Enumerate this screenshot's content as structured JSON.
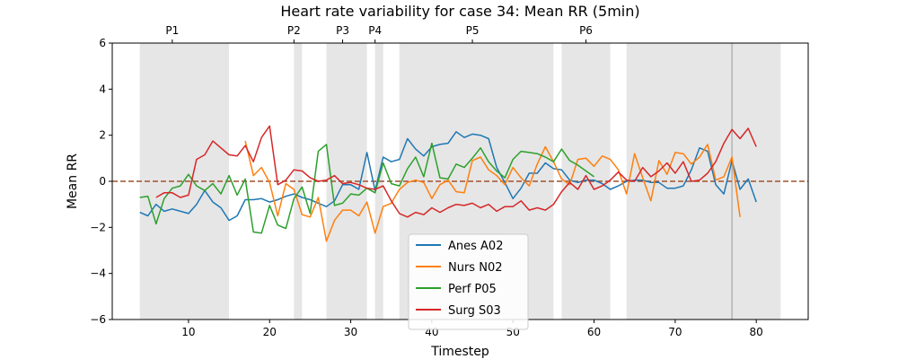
{
  "chart_data": {
    "type": "line",
    "title": "Heart rate variability for case 34: Mean RR (5min)",
    "xlabel": "Timestep",
    "ylabel": "Mean RR",
    "xlim": [
      0.6,
      86.4
    ],
    "ylim": [
      -6,
      6
    ],
    "xticks": [
      10,
      20,
      30,
      40,
      50,
      60,
      70,
      80
    ],
    "yticks": [
      -6,
      -4,
      -2,
      0,
      2,
      4,
      6
    ],
    "reference_line": {
      "y": 0,
      "color": "#a0522d",
      "style": "dashed"
    },
    "legend_position": "lower-center",
    "phases": [
      {
        "label": "P1",
        "start": 4,
        "end": 15,
        "label_x": 8
      },
      {
        "label": "P2",
        "start": 23,
        "end": 24,
        "label_x": 23
      },
      {
        "label": "P3",
        "start": 27,
        "end": 32,
        "label_x": 29
      },
      {
        "label": "P4",
        "start": 33,
        "end": 34,
        "label_x": 33
      },
      {
        "label": "P5",
        "start": 36,
        "end": 55,
        "label_x": 45
      },
      {
        "label": "P6",
        "start": 56,
        "end": 62,
        "label_x": 59
      },
      {
        "label": "",
        "start": 64,
        "end": 77,
        "label_x": null
      },
      {
        "label": "",
        "start": 77,
        "end": 83,
        "label_x": null
      }
    ],
    "series": [
      {
        "name": "Anes A02",
        "color": "#1f77b4",
        "x": [
          4,
          5,
          6,
          7,
          8,
          9,
          10,
          11,
          12,
          13,
          14,
          15,
          16,
          17,
          18,
          19,
          20,
          21,
          22,
          23,
          24,
          25,
          26,
          27,
          28,
          29,
          30,
          31,
          32,
          33,
          34,
          35,
          36,
          37,
          38,
          39,
          40,
          41,
          42,
          43,
          44,
          45,
          46,
          47,
          48,
          49,
          50,
          51,
          52,
          53,
          54,
          55,
          56,
          57,
          58,
          59,
          60,
          61,
          62,
          63,
          64,
          65,
          66,
          67,
          68,
          69,
          70,
          71,
          72,
          73,
          74,
          75,
          76,
          77,
          78,
          79,
          80
        ],
        "values": [
          -1.35,
          -1.5,
          -1.0,
          -1.3,
          -1.2,
          -1.3,
          -1.4,
          -1.0,
          -0.4,
          -0.9,
          -1.15,
          -1.7,
          -1.5,
          -0.8,
          -0.8,
          -0.75,
          -0.9,
          -0.8,
          -0.65,
          -0.55,
          -0.7,
          -0.8,
          -0.95,
          -1.1,
          -0.85,
          -0.15,
          -0.15,
          -0.35,
          1.25,
          -0.4,
          1.05,
          0.85,
          0.95,
          1.85,
          1.4,
          1.1,
          1.5,
          1.6,
          1.65,
          2.15,
          1.9,
          2.05,
          2.0,
          1.85,
          0.6,
          -0.05,
          -0.75,
          -0.3,
          0.35,
          0.35,
          0.8,
          0.55,
          0.5,
          0.05,
          -0.05,
          0.05,
          0.05,
          -0.1,
          -0.35,
          -0.2,
          0.0,
          0.05,
          0.05,
          -0.05,
          -0.05,
          -0.3,
          -0.3,
          -0.2,
          0.5,
          1.45,
          1.3,
          -0.15,
          -0.55,
          0.9,
          -0.35,
          0.1,
          -0.9
        ]
      },
      {
        "name": "Nurs N02",
        "color": "#ff7f0e",
        "x": [
          17,
          18,
          19,
          20,
          21,
          22,
          23,
          24,
          25,
          26,
          27,
          28,
          29,
          30,
          31,
          32,
          33,
          34,
          35,
          36,
          37,
          38,
          39,
          40,
          41,
          42,
          43,
          44,
          45,
          46,
          47,
          48,
          49,
          50,
          51,
          52,
          53,
          54,
          55,
          56,
          57,
          58,
          59,
          60,
          61,
          62,
          63,
          64,
          65,
          66,
          67,
          68,
          69,
          70,
          71,
          72,
          73,
          74,
          75,
          76,
          77,
          78
        ],
        "values": [
          1.75,
          0.25,
          0.6,
          -0.05,
          -1.5,
          -0.1,
          -0.35,
          -1.45,
          -1.55,
          -0.7,
          -2.6,
          -1.7,
          -1.25,
          -1.25,
          -1.5,
          -0.9,
          -2.25,
          -1.1,
          -0.95,
          -0.35,
          -0.05,
          0.05,
          -0.05,
          -0.75,
          -0.15,
          0.05,
          -0.45,
          -0.5,
          0.9,
          1.05,
          0.5,
          0.25,
          -0.15,
          0.6,
          0.15,
          -0.2,
          0.75,
          1.5,
          0.85,
          0.1,
          -0.15,
          0.95,
          1.0,
          0.65,
          1.1,
          0.95,
          0.5,
          -0.55,
          1.2,
          0.15,
          -0.85,
          0.9,
          0.3,
          1.25,
          1.2,
          0.75,
          1.05,
          1.6,
          0.05,
          0.2,
          1.05,
          -1.55
        ]
      },
      {
        "name": "Perf P05",
        "color": "#2ca02c",
        "x": [
          4,
          5,
          6,
          7,
          8,
          9,
          10,
          11,
          12,
          13,
          14,
          15,
          16,
          17,
          18,
          19,
          20,
          21,
          22,
          23,
          24,
          25,
          26,
          27,
          28,
          29,
          30,
          31,
          32,
          33,
          34,
          35,
          36,
          37,
          38,
          39,
          40,
          41,
          42,
          43,
          44,
          45,
          46,
          47,
          48,
          49,
          50,
          51,
          52,
          53,
          54,
          55,
          56,
          57,
          58,
          59,
          60
        ],
        "values": [
          -0.7,
          -0.65,
          -1.85,
          -0.75,
          -0.3,
          -0.2,
          0.3,
          -0.2,
          -0.4,
          -0.1,
          -0.55,
          0.25,
          -0.6,
          0.1,
          -2.2,
          -2.25,
          -1.05,
          -1.9,
          -2.05,
          -0.75,
          -0.25,
          -1.4,
          1.3,
          1.6,
          -1.05,
          -0.95,
          -0.55,
          -0.6,
          -0.3,
          -0.5,
          0.8,
          -0.1,
          -0.2,
          0.55,
          1.05,
          0.2,
          1.65,
          0.15,
          0.1,
          0.75,
          0.6,
          1.0,
          1.45,
          0.85,
          0.45,
          0.15,
          0.95,
          1.3,
          1.25,
          1.2,
          1.05,
          0.85,
          1.4,
          0.9,
          0.7,
          0.45,
          0.2
        ]
      },
      {
        "name": "Surg S03",
        "color": "#d62728",
        "x": [
          6,
          7,
          8,
          9,
          10,
          11,
          12,
          13,
          14,
          15,
          16,
          17,
          18,
          19,
          20,
          21,
          22,
          23,
          24,
          25,
          26,
          27,
          28,
          29,
          30,
          31,
          32,
          33,
          34,
          35,
          36,
          37,
          38,
          39,
          40,
          41,
          42,
          43,
          44,
          45,
          46,
          47,
          48,
          49,
          50,
          51,
          52,
          53,
          54,
          55,
          56,
          57,
          58,
          59,
          60,
          61,
          62,
          63,
          64,
          65,
          66,
          67,
          68,
          69,
          70,
          71,
          72,
          73,
          74,
          75,
          76,
          77,
          78,
          79,
          80
        ],
        "values": [
          -0.7,
          -0.5,
          -0.5,
          -0.7,
          -0.6,
          0.95,
          1.15,
          1.75,
          1.45,
          1.15,
          1.1,
          1.55,
          0.85,
          1.9,
          2.4,
          -0.15,
          0.05,
          0.5,
          0.45,
          0.15,
          0.0,
          0.05,
          0.25,
          -0.1,
          -0.05,
          -0.15,
          -0.3,
          -0.35,
          -0.2,
          -0.85,
          -1.4,
          -1.55,
          -1.35,
          -1.45,
          -1.15,
          -1.35,
          -1.15,
          -1.0,
          -1.05,
          -0.95,
          -1.15,
          -1.0,
          -1.3,
          -1.1,
          -1.1,
          -0.85,
          -1.25,
          -1.15,
          -1.25,
          -1.0,
          -0.45,
          -0.05,
          -0.35,
          0.25,
          -0.35,
          -0.2,
          0.05,
          0.4,
          0.05,
          0.0,
          0.6,
          0.2,
          0.45,
          0.8,
          0.35,
          0.85,
          0.0,
          0.05,
          0.35,
          0.85,
          1.65,
          2.25,
          1.85,
          2.3,
          1.5
        ]
      }
    ]
  }
}
